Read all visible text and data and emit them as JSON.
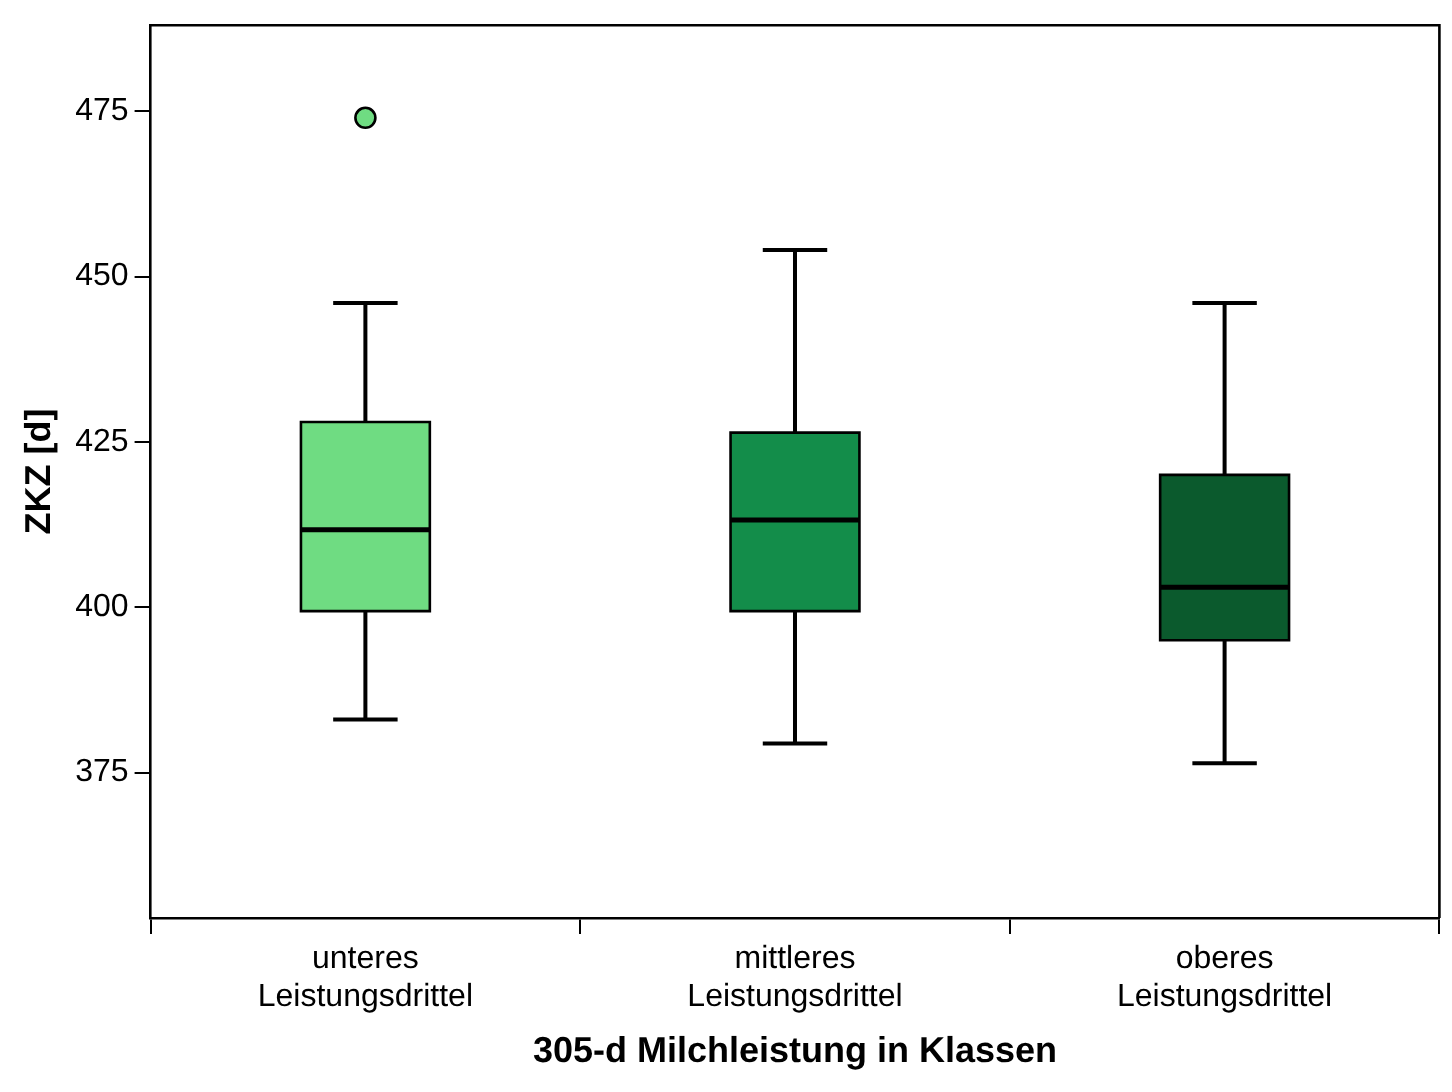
{
  "chart_data": {
    "type": "box",
    "xlabel": "305-d Milchleistung in Klassen",
    "ylabel": "ZKZ [d]",
    "categories": [
      "unteres\nLeistungsdrittel",
      "mittleres\nLeistungsdrittel",
      "oberes\nLeistungsdrittel"
    ],
    "colors": [
      "#6fdc82",
      "#138d4a",
      "#0b5a2d"
    ],
    "boxes": [
      {
        "low": 383,
        "q1": 399.4,
        "median": 411.7,
        "q3": 428,
        "high": 446,
        "outliers": [
          474
        ]
      },
      {
        "low": 379.4,
        "q1": 399.4,
        "median": 413.2,
        "q3": 426.4,
        "high": 454
      },
      {
        "low": 376.4,
        "q1": 395,
        "median": 403,
        "q3": 420,
        "high": 446
      }
    ],
    "ylim": [
      353,
      488
    ],
    "yticks": [
      375,
      400,
      425,
      450,
      475
    ],
    "grid": false,
    "legend": false
  }
}
